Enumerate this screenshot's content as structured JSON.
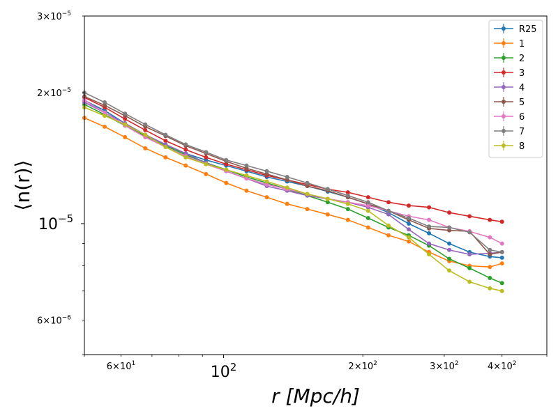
{
  "chart_data": {
    "type": "line",
    "title": "",
    "xlabel": "r [Mpc/h]",
    "ylabel": "⟨n(r)⟩",
    "xscale": "log",
    "yscale": "log",
    "xlim": [
      50,
      500
    ],
    "ylim": [
      5e-06,
      3e-05
    ],
    "legend_position": "top-right",
    "x_major_ticks": [
      {
        "value": 100,
        "base": "10",
        "exp": "2"
      }
    ],
    "x_minor_ticks": [
      {
        "value": 60,
        "mant": "6",
        "base": "10",
        "exp": "1"
      },
      {
        "value": 200,
        "mant": "2",
        "base": "10",
        "exp": "2"
      },
      {
        "value": 300,
        "mant": "3",
        "base": "10",
        "exp": "2"
      },
      {
        "value": 400,
        "mant": "4",
        "base": "10",
        "exp": "2"
      }
    ],
    "y_major_ticks": [
      {
        "value": 1e-05,
        "base": "10",
        "exp": "−5"
      }
    ],
    "y_minor_ticks": [
      {
        "value": 6e-06,
        "mant": "6",
        "base": "10",
        "exp": "−6"
      },
      {
        "value": 2e-05,
        "mant": "2",
        "base": "10",
        "exp": "−5"
      },
      {
        "value": 3e-05,
        "mant": "3",
        "base": "10",
        "exp": "−5"
      }
    ],
    "x_unlabeled_minor": [
      50,
      70,
      80,
      90,
      500
    ],
    "y_unlabeled_minor": [
      5e-06,
      7e-06,
      8e-06,
      9e-06
    ],
    "series": [
      {
        "name": "R25",
        "color": "#1f77b4",
        "x": [
          50,
          55.3,
          61.2,
          67.7,
          74.9,
          82.8,
          91.6,
          101.3,
          112.1,
          124,
          137.2,
          151.7,
          167.9,
          185.7,
          205.4,
          227.3,
          251.4,
          278.1,
          307.6,
          340.3,
          376.5,
          400
        ],
        "y": [
          1.92e-05,
          1.82e-05,
          1.7e-05,
          1.6e-05,
          1.52e-05,
          1.45e-05,
          1.4e-05,
          1.36e-05,
          1.32e-05,
          1.28e-05,
          1.25e-05,
          1.22e-05,
          1.185e-05,
          1.15e-05,
          1.11e-05,
          1.06e-05,
          1e-05,
          9.5e-06,
          9e-06,
          8.6e-06,
          8.4e-06,
          8.35e-06
        ]
      },
      {
        "name": "1",
        "color": "#ff7f0e",
        "x": [
          50,
          55.3,
          61.2,
          67.7,
          74.9,
          82.8,
          91.6,
          101.3,
          112.1,
          124,
          137.2,
          151.7,
          167.9,
          185.7,
          205.4,
          227.3,
          251.4,
          278.1,
          307.6,
          340.3,
          376.5,
          400
        ],
        "y": [
          1.75e-05,
          1.67e-05,
          1.58e-05,
          1.49e-05,
          1.42e-05,
          1.36e-05,
          1.3e-05,
          1.24e-05,
          1.19e-05,
          1.15e-05,
          1.11e-05,
          1.08e-05,
          1.05e-05,
          1.02e-05,
          9.8e-06,
          9.4e-06,
          9.1e-06,
          8.6e-06,
          8.2e-06,
          8e-06,
          7.95e-06,
          8.1e-06
        ]
      },
      {
        "name": "2",
        "color": "#2ca02c",
        "x": [
          50,
          55.3,
          61.2,
          67.7,
          74.9,
          82.8,
          91.6,
          101.3,
          112.1,
          124,
          137.2,
          151.7,
          167.9,
          185.7,
          205.4,
          227.3,
          251.4,
          278.1,
          307.6,
          340.3,
          376.5,
          400
        ],
        "y": [
          1.88e-05,
          1.78e-05,
          1.68e-05,
          1.59e-05,
          1.51e-05,
          1.44e-05,
          1.38e-05,
          1.33e-05,
          1.28e-05,
          1.24e-05,
          1.2e-05,
          1.16e-05,
          1.12e-05,
          1.08e-05,
          1.03e-05,
          9.8e-06,
          9.4e-06,
          8.9e-06,
          8.3e-06,
          7.9e-06,
          7.5e-06,
          7.3e-06
        ]
      },
      {
        "name": "3",
        "color": "#d62728",
        "x": [
          50,
          55.3,
          61.2,
          67.7,
          74.9,
          82.8,
          91.6,
          101.3,
          112.1,
          124,
          137.2,
          151.7,
          167.9,
          185.7,
          205.4,
          227.3,
          251.4,
          278.1,
          307.6,
          340.3,
          376.5,
          400
        ],
        "y": [
          1.95e-05,
          1.85e-05,
          1.74e-05,
          1.64e-05,
          1.55e-05,
          1.48e-05,
          1.42e-05,
          1.37e-05,
          1.33e-05,
          1.29e-05,
          1.26e-05,
          1.23e-05,
          1.2e-05,
          1.18e-05,
          1.15e-05,
          1.12e-05,
          1.1e-05,
          1.09e-05,
          1.06e-05,
          1.04e-05,
          1.02e-05,
          1.01e-05
        ]
      },
      {
        "name": "4",
        "color": "#9467bd",
        "x": [
          50,
          55.3,
          61.2,
          67.7,
          74.9,
          82.8,
          91.6,
          101.3,
          112.1,
          124,
          137.2,
          151.7,
          167.9,
          185.7,
          205.4,
          227.3,
          251.4,
          278.1,
          307.6,
          340.3,
          376.5,
          400
        ],
        "y": [
          1.9e-05,
          1.8e-05,
          1.7e-05,
          1.6e-05,
          1.52e-05,
          1.45e-05,
          1.38e-05,
          1.32e-05,
          1.27e-05,
          1.22e-05,
          1.19e-05,
          1.16e-05,
          1.14e-05,
          1.12e-05,
          1.09e-05,
          1.05e-05,
          9.7e-06,
          9e-06,
          8.7e-06,
          8.5e-06,
          8.55e-06,
          8.6e-06
        ]
      },
      {
        "name": "5",
        "color": "#8c564b",
        "x": [
          50,
          55.3,
          61.2,
          67.7,
          74.9,
          82.8,
          91.6,
          101.3,
          112.1,
          124,
          137.2,
          151.7,
          167.9,
          185.7,
          205.4,
          227.3,
          251.4,
          278.1,
          307.6,
          340.3,
          376.5,
          400
        ],
        "y": [
          1.96e-05,
          1.87e-05,
          1.77e-05,
          1.67e-05,
          1.59e-05,
          1.51e-05,
          1.45e-05,
          1.39e-05,
          1.34e-05,
          1.3e-05,
          1.26e-05,
          1.22e-05,
          1.19e-05,
          1.15e-05,
          1.11e-05,
          1.07e-05,
          1.02e-05,
          9.75e-06,
          9.65e-06,
          9.6e-06,
          8.5e-06,
          8.6e-06
        ]
      },
      {
        "name": "6",
        "color": "#e377c2",
        "x": [
          50,
          55.3,
          61.2,
          67.7,
          74.9,
          82.8,
          91.6,
          101.3,
          112.1,
          124,
          137.2,
          151.7,
          167.9,
          185.7,
          205.4,
          227.3,
          251.4,
          278.1,
          307.6,
          340.3,
          376.5,
          400
        ],
        "y": [
          1.92e-05,
          1.8e-05,
          1.68e-05,
          1.58e-05,
          1.5e-05,
          1.43e-05,
          1.37e-05,
          1.32e-05,
          1.27e-05,
          1.23e-05,
          1.2e-05,
          1.17e-05,
          1.14e-05,
          1.12e-05,
          1.1e-05,
          1.07e-05,
          1.04e-05,
          1.02e-05,
          9.8e-06,
          9.6e-06,
          9.3e-06,
          9e-06
        ]
      },
      {
        "name": "7",
        "color": "#7f7f7f",
        "x": [
          50,
          55.3,
          61.2,
          67.7,
          74.9,
          82.8,
          91.6,
          101.3,
          112.1,
          124,
          137.2,
          151.7,
          167.9,
          185.7,
          205.4,
          227.3,
          251.4,
          278.1,
          307.6,
          340.3,
          376.5,
          400
        ],
        "y": [
          2e-05,
          1.9e-05,
          1.79e-05,
          1.69e-05,
          1.6e-05,
          1.52e-05,
          1.46e-05,
          1.4e-05,
          1.36e-05,
          1.32e-05,
          1.28e-05,
          1.24e-05,
          1.2e-05,
          1.16e-05,
          1.12e-05,
          1.07e-05,
          1.03e-05,
          9.85e-06,
          9.8e-06,
          9.55e-06,
          8.7e-06,
          8.6e-06
        ]
      },
      {
        "name": "8",
        "color": "#bcbd22",
        "x": [
          50,
          55.3,
          61.2,
          67.7,
          74.9,
          82.8,
          91.6,
          101.3,
          112.1,
          124,
          137.2,
          151.7,
          167.9,
          185.7,
          205.4,
          227.3,
          251.4,
          278.1,
          307.6,
          340.3,
          376.5,
          400
        ],
        "y": [
          1.85e-05,
          1.77e-05,
          1.69e-05,
          1.6e-05,
          1.5e-05,
          1.42e-05,
          1.37e-05,
          1.33e-05,
          1.29e-05,
          1.25e-05,
          1.21e-05,
          1.17e-05,
          1.14e-05,
          1.11e-05,
          1.07e-05,
          9.9e-06,
          9.3e-06,
          8.5e-06,
          7.8e-06,
          7.35e-06,
          7.1e-06,
          7e-06
        ]
      }
    ]
  }
}
